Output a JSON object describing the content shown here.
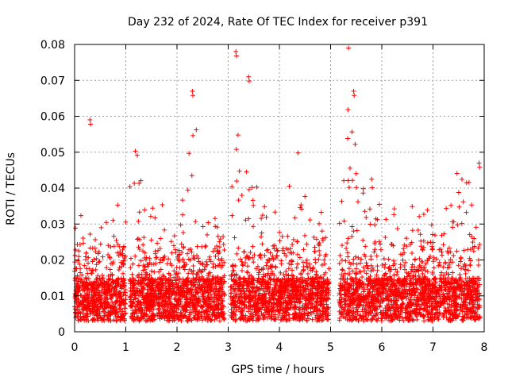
{
  "chart_data": {
    "type": "scatter",
    "title": "Day 232 of 2024, Rate Of TEC Index for receiver p391",
    "xlabel": "GPS time / hours",
    "ylabel": "ROTI / TECUs",
    "xlim": [
      0,
      8
    ],
    "ylim": [
      0,
      0.08
    ],
    "x_ticks": [
      0,
      1,
      2,
      3,
      4,
      5,
      6,
      7,
      8
    ],
    "y_ticks": [
      0,
      0.01,
      0.02,
      0.03,
      0.04,
      0.05,
      0.06,
      0.07,
      0.08
    ],
    "x_tick_labels": [
      "0",
      "1",
      "2",
      "3",
      "4",
      "5",
      "6",
      "7",
      "8"
    ],
    "y_tick_labels": [
      "0",
      "0.01",
      "0.02",
      "0.03",
      "0.04",
      "0.05",
      "0.06",
      "0.07",
      "0.08"
    ],
    "grid": true,
    "marker": "+",
    "color": "#ff0000",
    "data_gaps_hours": [
      [
        1.0,
        1.08
      ],
      [
        2.93,
        3.05
      ],
      [
        4.97,
        5.17
      ]
    ],
    "notable_points": [
      {
        "x": 0.3,
        "y": 0.059
      },
      {
        "x": 2.3,
        "y": 0.067
      },
      {
        "x": 3.15,
        "y": 0.078
      },
      {
        "x": 3.4,
        "y": 0.071
      },
      {
        "x": 5.45,
        "y": 0.067
      },
      {
        "x": 7.9,
        "y": 0.047
      }
    ],
    "series": [
      {
        "name": "ROTI",
        "description": "Dense scatter; baseline mostly 0.003-0.015 TECU with scattered values up to ~0.04; bursts to 0.06-0.078 near 2.3 h, 3.1-3.5 h and 5.2-5.5 h; sparse points near 0.3 h (~0.059); edge of data near 7.9 h (~0.047)."
      }
    ]
  }
}
